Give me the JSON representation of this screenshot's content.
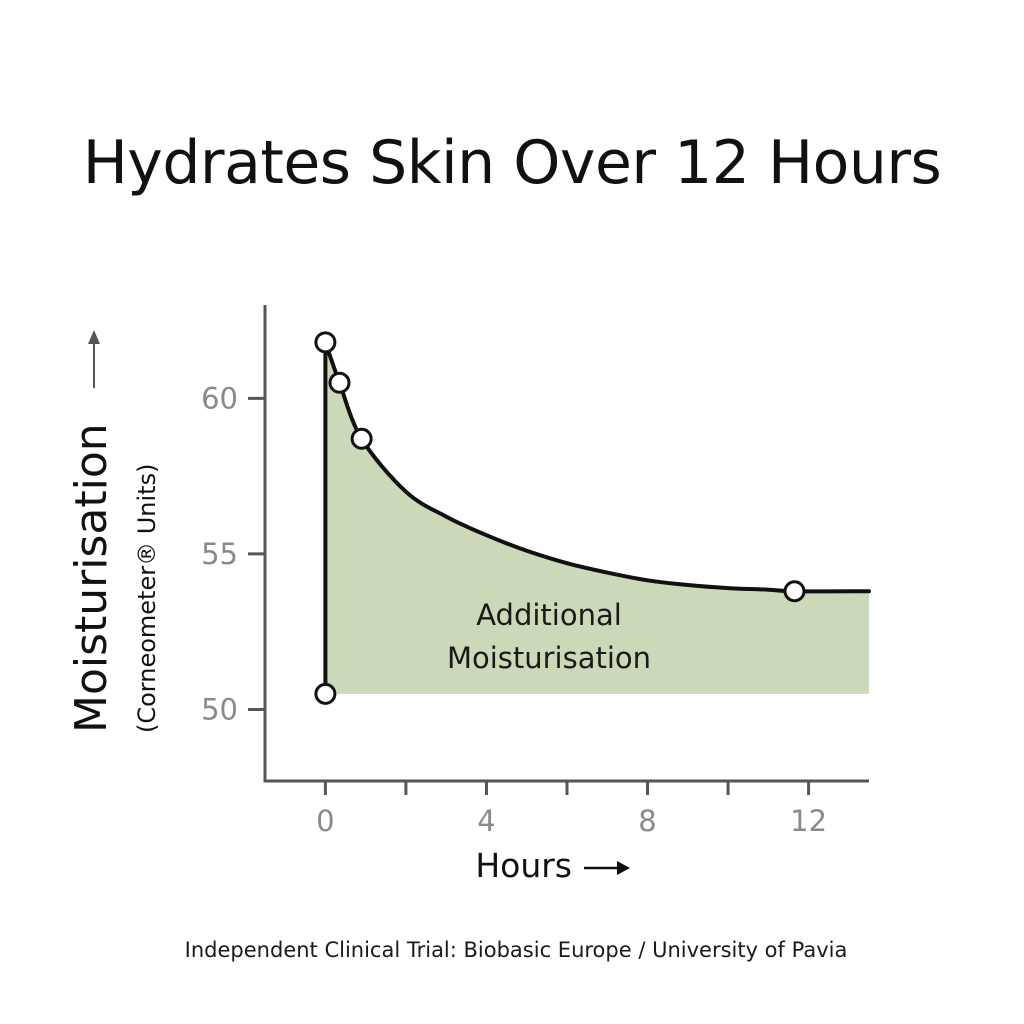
{
  "chart_data": {
    "type": "area",
    "title": "Hydrates Skin Over 12 Hours",
    "ylabel": "Moisturisation",
    "ylabel_sub": "(Corneometer® Units)",
    "xlabel": "Hours",
    "x_ticks": [
      0,
      4,
      8,
      12
    ],
    "y_ticks": [
      50,
      55,
      60
    ],
    "x_minor_ticks": [
      2,
      6,
      10
    ],
    "xlim": [
      -1.5,
      13.5
    ],
    "ylim": [
      47.7,
      63.0
    ],
    "baseline": 50.5,
    "curve": {
      "x": [
        0,
        0.35,
        0.9,
        2,
        3,
        4,
        5,
        6,
        7,
        8,
        9,
        10,
        11,
        11.65,
        13.5
      ],
      "y": [
        61.8,
        60.5,
        58.7,
        57.0,
        56.2,
        55.6,
        55.1,
        54.7,
        54.4,
        54.15,
        54.0,
        53.9,
        53.85,
        53.8,
        53.8
      ]
    },
    "points": [
      {
        "x": 0,
        "y": 61.8
      },
      {
        "x": 0.35,
        "y": 60.5
      },
      {
        "x": 0.9,
        "y": 58.7
      },
      {
        "x": 11.65,
        "y": 53.8
      },
      {
        "x": 0,
        "y": 50.5
      }
    ],
    "annotation": [
      "Additional",
      "Moisturisation"
    ],
    "fill_color": "#cbd9b8",
    "line_color": "#111111",
    "axis_color": "#555555",
    "tick_label_color": "#8a8a8a",
    "grid": false
  },
  "source_note": "Independent Clinical Trial: Biobasic Europe / University of Pavia"
}
